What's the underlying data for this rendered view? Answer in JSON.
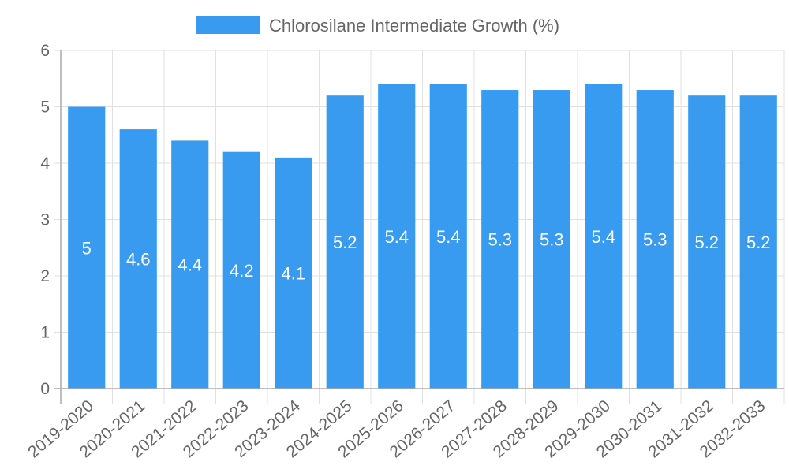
{
  "chart_data": {
    "type": "bar",
    "title": "",
    "xlabel": "",
    "ylabel": "",
    "ylim": [
      0,
      6
    ],
    "yticks": [
      0,
      1,
      2,
      3,
      4,
      5,
      6
    ],
    "grid": true,
    "legend_position": "top",
    "categories": [
      "2019-2020",
      "2020-2021",
      "2021-2022",
      "2022-2023",
      "2023-2024",
      "2024-2025",
      "2025-2026",
      "2026-2027",
      "2027-2028",
      "2028-2029",
      "2029-2030",
      "2030-2031",
      "2031-2032",
      "2032-2033"
    ],
    "series": [
      {
        "name": "Chlorosilane Intermediate Growth (%)",
        "color": "#389bf0",
        "values": [
          5,
          4.6,
          4.4,
          4.2,
          4.1,
          5.2,
          5.4,
          5.4,
          5.3,
          5.3,
          5.4,
          5.3,
          5.2,
          5.2
        ],
        "data_labels": [
          "5",
          "4.6",
          "4.4",
          "4.2",
          "4.1",
          "5.2",
          "5.4",
          "5.4",
          "5.3",
          "5.3",
          "5.4",
          "5.3",
          "5.2",
          "5.2"
        ]
      }
    ]
  },
  "legend": {
    "label": "Chlorosilane Intermediate Growth (%)",
    "swatch_color": "#389bf0"
  },
  "colors": {
    "bar": "#389bf0",
    "grid": "#e0e0e0",
    "axis": "#aaaaaa",
    "text": "#666666"
  }
}
